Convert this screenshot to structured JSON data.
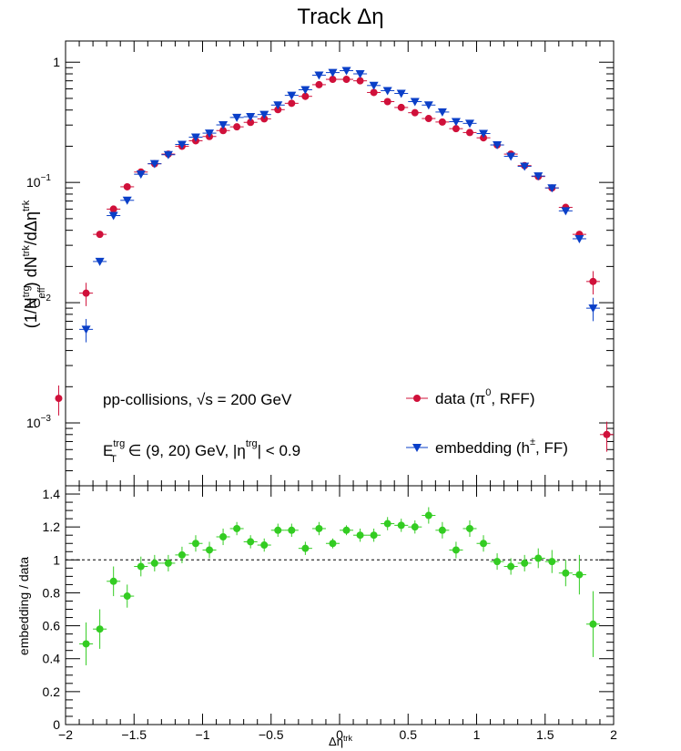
{
  "chart_data": {
    "type": "scatter",
    "title": "Track Δη",
    "top_panel": {
      "ylabel": {
        "main": "(1/N",
        "sup1": "trg",
        "sub1": "eff",
        "mid": ") dN",
        "sup2": "trk",
        "end": "/dΔη",
        "sup3": "trk"
      },
      "yscale": "log",
      "ylim": [
        0.0003,
        1.5
      ],
      "xlim": [
        -2,
        2
      ],
      "y_tick_labels": [
        {
          "value": 1,
          "base": "1",
          "exp": ""
        },
        {
          "value": 0.1,
          "base": "10",
          "exp": "−1"
        },
        {
          "value": 0.01,
          "base": "10",
          "exp": "−2"
        },
        {
          "value": 0.001,
          "base": "10",
          "exp": "−3"
        }
      ],
      "annotations": {
        "line1": {
          "pre": "pp-collisions, ",
          "root": "√s",
          "post": " = 200 GeV"
        },
        "line2": {
          "E": "E",
          "sup": "trg",
          "sub": "T",
          "mid": " ∈ (9, 20) GeV, |η",
          "sup2": "trg",
          "end": "| < 0.9"
        }
      },
      "legend": {
        "placement": "bottom-right",
        "entries": [
          {
            "series": "data",
            "pre": "data (π",
            "sup": "0",
            "post": ", RFF)"
          },
          {
            "series": "embedding",
            "pre": "embedding (h",
            "sup": "±",
            "post": ", FF)"
          }
        ]
      },
      "series": [
        {
          "name": "data",
          "color": "#d0103a",
          "marker": "circle",
          "x": [
            -2.05,
            -1.85,
            -1.75,
            -1.65,
            -1.55,
            -1.45,
            -1.35,
            -1.25,
            -1.15,
            -1.05,
            -0.95,
            -0.85,
            -0.75,
            -0.65,
            -0.55,
            -0.45,
            -0.35,
            -0.25,
            -0.15,
            -0.05,
            0.05,
            0.15,
            0.25,
            0.35,
            0.45,
            0.55,
            0.65,
            0.75,
            0.85,
            0.95,
            1.05,
            1.15,
            1.25,
            1.35,
            1.45,
            1.55,
            1.65,
            1.75,
            1.85,
            1.95
          ],
          "y": [
            0.0016,
            0.012,
            0.037,
            0.06,
            0.092,
            0.122,
            0.143,
            0.172,
            0.2,
            0.222,
            0.241,
            0.27,
            0.29,
            0.316,
            0.338,
            0.403,
            0.455,
            0.52,
            0.65,
            0.72,
            0.72,
            0.7,
            0.56,
            0.47,
            0.42,
            0.38,
            0.34,
            0.318,
            0.28,
            0.26,
            0.235,
            0.205,
            0.172,
            0.138,
            0.112,
            0.09,
            0.062,
            0.037,
            0.015,
            0.0008
          ]
        },
        {
          "name": "embedding",
          "color": "#0a3fc8",
          "marker": "triangle-down",
          "x": [
            -1.85,
            -1.75,
            -1.65,
            -1.55,
            -1.45,
            -1.35,
            -1.25,
            -1.15,
            -1.05,
            -0.95,
            -0.85,
            -0.75,
            -0.65,
            -0.55,
            -0.45,
            -0.35,
            -0.25,
            -0.15,
            -0.05,
            0.05,
            0.15,
            0.25,
            0.35,
            0.45,
            0.55,
            0.65,
            0.75,
            0.85,
            0.95,
            1.05,
            1.15,
            1.25,
            1.35,
            1.45,
            1.55,
            1.65,
            1.75,
            1.85
          ],
          "y": [
            0.006,
            0.022,
            0.053,
            0.071,
            0.117,
            0.143,
            0.17,
            0.207,
            0.238,
            0.257,
            0.301,
            0.347,
            0.352,
            0.367,
            0.44,
            0.53,
            0.59,
            0.78,
            0.82,
            0.85,
            0.8,
            0.64,
            0.58,
            0.55,
            0.47,
            0.44,
            0.385,
            0.32,
            0.31,
            0.255,
            0.205,
            0.165,
            0.136,
            0.113,
            0.09,
            0.058,
            0.034,
            0.009
          ]
        }
      ]
    },
    "ratio_panel": {
      "ylabel": "embedding / data",
      "xlabel": {
        "main": "Δη",
        "sup": "trk"
      },
      "ylim": [
        0,
        1.45
      ],
      "xlim": [
        -2,
        2
      ],
      "y_ticks": [
        "0",
        "0.2",
        "0.4",
        "0.6",
        "0.8",
        "1",
        "1.2",
        "1.4"
      ],
      "x_ticks": [
        "−2",
        "−1.5",
        "−1",
        "−0.5",
        "0",
        "0.5",
        "1",
        "1.5",
        "2"
      ],
      "reference_line": 1,
      "series": [
        {
          "name": "ratio",
          "color": "#33cc22",
          "marker": "circle",
          "x": [
            -1.85,
            -1.75,
            -1.65,
            -1.55,
            -1.45,
            -1.35,
            -1.25,
            -1.15,
            -1.05,
            -0.95,
            -0.85,
            -0.75,
            -0.65,
            -0.55,
            -0.45,
            -0.35,
            -0.25,
            -0.15,
            -0.05,
            0.05,
            0.15,
            0.25,
            0.35,
            0.45,
            0.55,
            0.65,
            0.75,
            0.85,
            0.95,
            1.05,
            1.15,
            1.25,
            1.35,
            1.45,
            1.55,
            1.65,
            1.75,
            1.85
          ],
          "y": [
            0.49,
            0.58,
            0.87,
            0.78,
            0.96,
            0.98,
            0.98,
            1.03,
            1.1,
            1.06,
            1.14,
            1.19,
            1.11,
            1.09,
            1.18,
            1.18,
            1.07,
            1.19,
            1.1,
            1.18,
            1.15,
            1.15,
            1.22,
            1.21,
            1.2,
            1.27,
            1.18,
            1.06,
            1.19,
            1.1,
            0.99,
            0.96,
            0.98,
            1.01,
            0.99,
            0.92,
            0.91,
            0.61
          ],
          "err": [
            0.13,
            0.12,
            0.09,
            0.07,
            0.06,
            0.05,
            0.05,
            0.05,
            0.05,
            0.05,
            0.05,
            0.04,
            0.04,
            0.04,
            0.04,
            0.04,
            0.04,
            0.04,
            0.03,
            0.03,
            0.04,
            0.04,
            0.04,
            0.04,
            0.04,
            0.05,
            0.05,
            0.05,
            0.05,
            0.05,
            0.05,
            0.05,
            0.05,
            0.06,
            0.07,
            0.08,
            0.12,
            0.2
          ]
        }
      ]
    }
  }
}
